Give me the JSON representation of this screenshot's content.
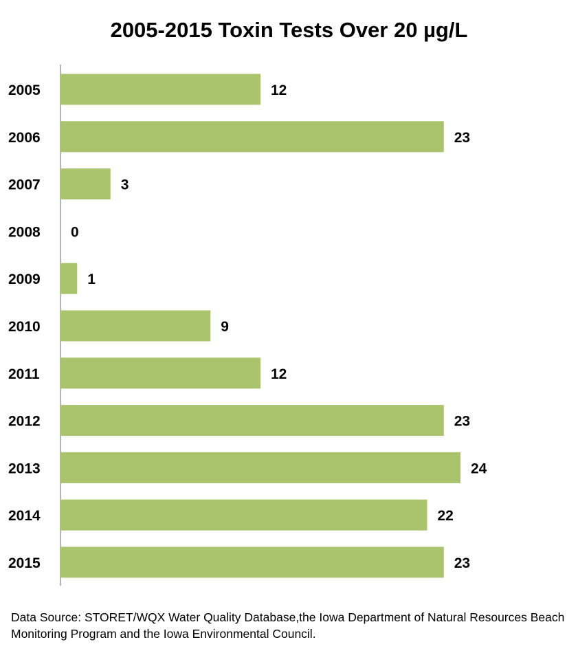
{
  "chart_data": {
    "type": "bar",
    "orientation": "horizontal",
    "title": "2005-2015 Toxin Tests Over 20 µg/L",
    "categories": [
      "2005",
      "2006",
      "2007",
      "2008",
      "2009",
      "2010",
      "2011",
      "2012",
      "2013",
      "2014",
      "2015"
    ],
    "values": [
      12,
      23,
      3,
      0,
      1,
      9,
      12,
      23,
      24,
      22,
      23
    ],
    "data_labels": [
      "12",
      "23",
      "3",
      "0",
      "1",
      "9",
      "12",
      "23",
      "24",
      "22",
      "23"
    ],
    "xlabel": "",
    "ylabel": "",
    "xlim": [
      0,
      24
    ],
    "grid": false,
    "legend": "none",
    "bar_color": "#a9c46c"
  },
  "source_note": "Data Source: STORET/WQX Water Quality Database,the Iowa Department of Natural Resources Beach Monitoring Program and the Iowa Environmental Council."
}
